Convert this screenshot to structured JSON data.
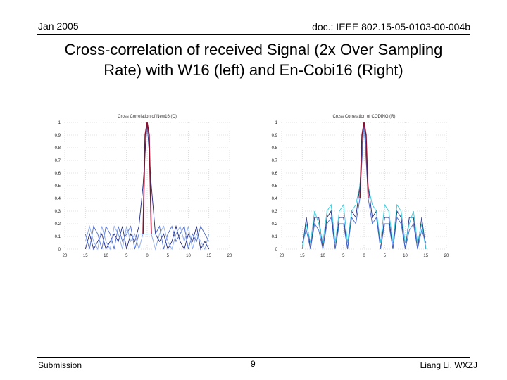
{
  "header": {
    "date": "Jan 2005",
    "doc_id": "doc.: IEEE 802.15-05-0103-00-004b"
  },
  "slide": {
    "title_line1": "Cross-correlation of received Signal (2x Over Sampling",
    "title_line2": "Rate) with W16 (left)  and En-Cobi16 (Right)"
  },
  "footer": {
    "left": "Submission",
    "page": "9",
    "right": "Liang Li, WXZJ"
  },
  "chart_data": [
    {
      "type": "line",
      "title": "Cross Correlation of New16 (C)",
      "xlim": [
        -20,
        20
      ],
      "ylim": [
        0,
        1
      ],
      "x_ticks": [
        -20,
        -15,
        -10,
        -5,
        0,
        5,
        10,
        15,
        20
      ],
      "x_tick_labels": [
        "20",
        "15",
        "10",
        "5",
        "0",
        "5",
        "10",
        "15",
        "20"
      ],
      "y_ticks": [
        0,
        0.1,
        0.2,
        0.3,
        0.4,
        0.5,
        0.6,
        0.7,
        0.8,
        0.9,
        1
      ],
      "y_tick_labels": [
        "0",
        "0.1",
        "0.2",
        "0.3",
        "0.4",
        "0.5",
        "0.6",
        "0.7",
        "0.8",
        "0.9",
        "1"
      ],
      "grid": true,
      "series": [
        {
          "color": "#1f2a80",
          "x": [
            -15,
            -14,
            -13,
            -12,
            -11,
            -10,
            -9,
            -8,
            -7,
            -6,
            -5,
            -4,
            -3,
            -2,
            -1,
            0,
            1,
            2,
            3,
            4,
            5,
            6,
            7,
            8,
            9,
            10,
            11,
            12,
            13,
            14,
            15
          ],
          "values": [
            0,
            0.12,
            0,
            0.06,
            0.12,
            0,
            0.06,
            0.12,
            0.06,
            0.18,
            0,
            0.12,
            0.06,
            0.18,
            0.5,
            1,
            0.5,
            0.12,
            0.06,
            0.12,
            0,
            0.06,
            0.18,
            0.06,
            0,
            0.12,
            0.06,
            0.18,
            0,
            0.06,
            0
          ]
        },
        {
          "color": "#4a6bd0",
          "x": [
            -15,
            -14,
            -13,
            -12,
            -11,
            -10,
            -9,
            -8,
            -7,
            -6,
            -5,
            -4,
            -3,
            -2,
            -1,
            0,
            1,
            2,
            3,
            4,
            5,
            6,
            7,
            8,
            9,
            10,
            11,
            12,
            13,
            14,
            15
          ],
          "values": [
            0.12,
            0,
            0.18,
            0.12,
            0,
            0.18,
            0.12,
            0,
            0.18,
            0.06,
            0.12,
            0.18,
            0,
            0.12,
            0.12,
            0.12,
            0.12,
            0.12,
            0.18,
            0,
            0.12,
            0.18,
            0.06,
            0.12,
            0.18,
            0,
            0.12,
            0.06,
            0.18,
            0.12,
            0.06
          ]
        },
        {
          "color": "#8aa8e8",
          "x": [
            -15,
            -14,
            -13,
            -12,
            -11,
            -10,
            -9,
            -8,
            -7,
            -6,
            -5,
            -4,
            -3,
            -2,
            -1,
            0,
            1,
            2,
            3,
            4,
            5,
            6,
            7,
            8,
            9,
            10,
            11,
            12,
            13,
            14,
            15
          ],
          "values": [
            0.06,
            0.18,
            0.06,
            0,
            0.18,
            0.06,
            0,
            0.18,
            0.12,
            0,
            0.18,
            0.06,
            0.12,
            0,
            0.12,
            0.12,
            0.12,
            0,
            0.12,
            0.18,
            0.06,
            0,
            0.12,
            0.18,
            0.06,
            0.18,
            0,
            0.12,
            0.06,
            0,
            0.12
          ]
        },
        {
          "color": "#8a1030",
          "x": [
            -1,
            -0.5,
            0,
            0.5,
            1
          ],
          "values": [
            0.12,
            0.9,
            1,
            0.9,
            0.12
          ]
        }
      ]
    },
    {
      "type": "line",
      "title": "Cross Correlation of CODING (R)",
      "xlim": [
        -20,
        20
      ],
      "ylim": [
        0,
        1
      ],
      "x_ticks": [
        -20,
        -15,
        -10,
        -5,
        0,
        5,
        10,
        15,
        20
      ],
      "x_tick_labels": [
        "20",
        "15",
        "10",
        "5",
        "0",
        "5",
        "10",
        "15",
        "20"
      ],
      "y_ticks": [
        0,
        0.1,
        0.2,
        0.3,
        0.4,
        0.5,
        0.6,
        0.7,
        0.8,
        0.9,
        1
      ],
      "y_tick_labels": [
        "0",
        "0.1",
        "0.2",
        "0.3",
        "0.4",
        "0.5",
        "0.6",
        "0.7",
        "0.8",
        "0.9",
        "1"
      ],
      "grid": true,
      "series": [
        {
          "color": "#1f2a80",
          "x": [
            -15,
            -14,
            -13,
            -12,
            -11,
            -10,
            -9,
            -8,
            -7,
            -6,
            -5,
            -4,
            -3,
            -2,
            -1,
            0,
            1,
            2,
            3,
            4,
            5,
            6,
            7,
            8,
            9,
            10,
            11,
            12,
            13,
            14,
            15
          ],
          "values": [
            0,
            0.25,
            0,
            0.25,
            0.25,
            0,
            0.25,
            0.3,
            0,
            0.25,
            0.25,
            0,
            0.3,
            0.25,
            0.5,
            1,
            0.5,
            0.25,
            0.3,
            0,
            0.25,
            0.25,
            0,
            0.3,
            0.25,
            0,
            0.25,
            0.25,
            0,
            0.25,
            0
          ]
        },
        {
          "color": "#30c8d8",
          "x": [
            -15,
            -14,
            -13,
            -12,
            -11,
            -10,
            -9,
            -8,
            -7,
            -6,
            -5,
            -4,
            -3,
            -2,
            -1,
            0,
            1,
            2,
            3,
            4,
            5,
            6,
            7,
            8,
            9,
            10,
            11,
            12,
            13,
            14,
            15
          ],
          "values": [
            0,
            0.2,
            0.05,
            0.3,
            0.2,
            0.05,
            0.3,
            0.35,
            0.05,
            0.3,
            0.35,
            0.05,
            0.3,
            0.35,
            0.5,
            1,
            0.5,
            0.35,
            0.3,
            0.05,
            0.35,
            0.3,
            0.05,
            0.35,
            0.3,
            0.05,
            0.2,
            0.3,
            0.05,
            0.2,
            0
          ]
        },
        {
          "color": "#4a6bd0",
          "x": [
            -15,
            -14,
            -13,
            -12,
            -11,
            -10,
            -9,
            -8,
            -7,
            -6,
            -5,
            -4,
            -3,
            -2,
            -1,
            0,
            1,
            2,
            3,
            4,
            5,
            6,
            7,
            8,
            9,
            10,
            11,
            12,
            13,
            14,
            15
          ],
          "values": [
            0.05,
            0.15,
            0,
            0.2,
            0.15,
            0,
            0.2,
            0.25,
            0,
            0.2,
            0.2,
            0,
            0.25,
            0.2,
            0.4,
            1,
            0.4,
            0.2,
            0.25,
            0,
            0.2,
            0.2,
            0,
            0.25,
            0.2,
            0,
            0.15,
            0.2,
            0,
            0.15,
            0.05
          ]
        },
        {
          "color": "#8a1030",
          "x": [
            -1,
            -0.5,
            0,
            0.5,
            1
          ],
          "values": [
            0.4,
            0.9,
            1,
            0.9,
            0.4
          ]
        }
      ]
    }
  ]
}
